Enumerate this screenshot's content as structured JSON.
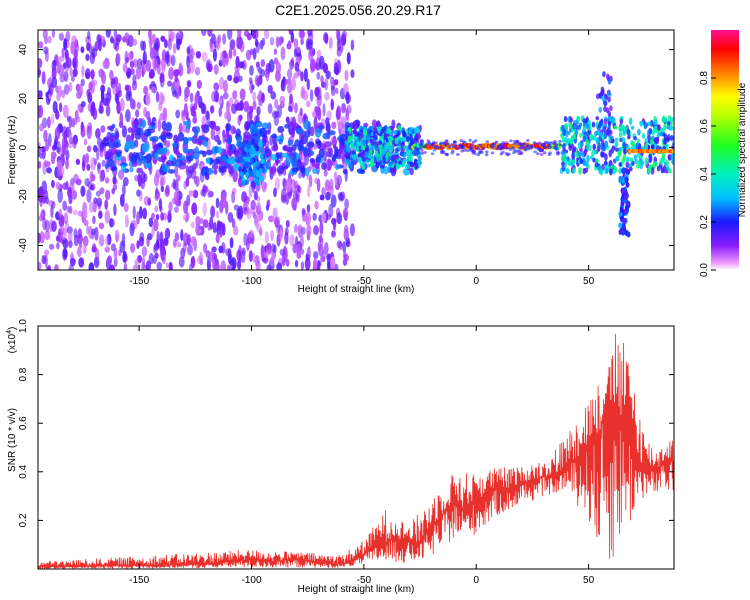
{
  "title": "C2E1.2025.056.20.29.R17",
  "chart_data": [
    {
      "type": "heatmap",
      "xlabel": "Height of straight line (km)",
      "ylabel": "Frequency (Hz)",
      "xlim": [
        -195,
        88
      ],
      "ylim": [
        -50,
        48
      ],
      "x_ticks": [
        -150,
        -100,
        -50,
        0,
        50
      ],
      "y_ticks": [
        -40,
        -20,
        0,
        20,
        40
      ],
      "colorbar": {
        "label": "Normalized spectral amplitude",
        "range": [
          0,
          1
        ],
        "ticks": [
          0.0,
          0.2,
          0.4,
          0.6,
          0.8
        ],
        "tick_labels": [
          "0.0",
          "0.2",
          "0.4",
          "0.6",
          "0.8"
        ]
      },
      "features": [
        {
          "x_range": [
            -195,
            -55
          ],
          "freq_range": [
            -50,
            48
          ],
          "amplitude": "scattered low-mid (purple)"
        },
        {
          "x_range": [
            -25,
            35
          ],
          "center_freq": 1,
          "amplitude": "high (red/orange), narrow line near 0 Hz"
        },
        {
          "x_range": [
            40,
            88
          ],
          "center_freq": 0,
          "amplitude": "mixed; dip to about -35 Hz near x = 65"
        }
      ]
    },
    {
      "type": "line",
      "xlabel": "Height of straight line (km)",
      "ylabel": "SNR (10 * v/v)",
      "y_multiplier": "(x10^4)",
      "y_multiplier_base": "(x10",
      "y_multiplier_exp": "4",
      "xlim": [
        -195,
        88
      ],
      "ylim": [
        0,
        1.0
      ],
      "x_ticks": [
        -150,
        -100,
        -50,
        0,
        50
      ],
      "y_ticks": [
        0.2,
        0.4,
        0.6,
        0.8,
        1.0
      ],
      "series": [
        {
          "color": "#e8302c",
          "x": [
            -195,
            -180,
            -160,
            -140,
            -120,
            -110,
            -100,
            -90,
            -80,
            -70,
            -60,
            -55,
            -50,
            -45,
            -42,
            -40,
            -35,
            -30,
            -25,
            -20,
            -15,
            -10,
            -5,
            0,
            5,
            10,
            15,
            20,
            25,
            30,
            35,
            40,
            45,
            50,
            55,
            58,
            62,
            65,
            70,
            72,
            75,
            80,
            85,
            88
          ],
          "y": [
            0.01,
            0.01,
            0.015,
            0.015,
            0.02,
            0.03,
            0.04,
            0.03,
            0.04,
            0.025,
            0.02,
            0.03,
            0.06,
            0.09,
            0.12,
            0.11,
            0.13,
            0.11,
            0.1,
            0.17,
            0.22,
            0.28,
            0.24,
            0.28,
            0.31,
            0.33,
            0.32,
            0.36,
            0.36,
            0.38,
            0.37,
            0.42,
            0.46,
            0.5,
            0.55,
            0.7,
            0.62,
            0.6,
            0.52,
            0.45,
            0.42,
            0.4,
            0.45,
            0.44
          ]
        }
      ],
      "noise_envelope": {
        "x": [
          -195,
          -100,
          -60,
          -50,
          -40,
          -30,
          -20,
          -10,
          0,
          10,
          20,
          30,
          40,
          50,
          55,
          60,
          62,
          65,
          70,
          75,
          80,
          88
        ],
        "y_low": [
          0.0,
          0.005,
          0.005,
          0.02,
          0.03,
          0.02,
          0.05,
          0.12,
          0.14,
          0.22,
          0.26,
          0.3,
          0.32,
          0.2,
          0.05,
          0.0,
          0.08,
          0.12,
          0.2,
          0.3,
          0.3,
          0.32
        ],
        "y_high": [
          0.03,
          0.08,
          0.06,
          0.12,
          0.25,
          0.18,
          0.3,
          0.4,
          0.4,
          0.42,
          0.42,
          0.45,
          0.55,
          0.72,
          0.78,
          0.85,
          1.0,
          0.95,
          0.8,
          0.55,
          0.5,
          0.55
        ]
      }
    }
  ]
}
